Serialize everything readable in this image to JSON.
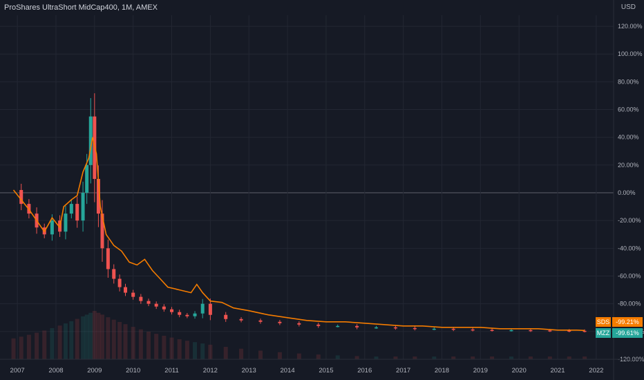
{
  "header": {
    "title": "ProShares UltraShort MidCap400, 1M, AMEX",
    "currency": "USD"
  },
  "colors": {
    "background": "#161a25",
    "grid": "#232733",
    "up": "#26a69a",
    "down": "#ef5350",
    "sds_line": "#f57c00",
    "mzz_tag": "#26a69a",
    "sds_tag": "#f57c00"
  },
  "chart_data": {
    "type": "line",
    "title": "ProShares UltraShort MidCap400, 1M, AMEX",
    "x_ticks": [
      "2007",
      "2008",
      "2009",
      "2010",
      "2011",
      "2012",
      "2013",
      "2014",
      "2015",
      "2016",
      "2017",
      "2018",
      "2019",
      "2020",
      "2021",
      "2022"
    ],
    "y_ticks": [
      "120.00%",
      "100.00%",
      "80.00%",
      "60.00%",
      "40.00%",
      "20.00%",
      "0.00%",
      "-20.00%",
      "-40.00%",
      "-60.00%",
      "-80.00%",
      "-100.00%",
      "-120.00%"
    ],
    "ylim": [
      -120,
      128
    ],
    "xlim": [
      2006.55,
      2022.45
    ],
    "grid": true,
    "series": [
      {
        "name": "SDS",
        "style": "line",
        "last_value_label": "-99.21%",
        "x": [
          2006.9,
          2007.1,
          2007.3,
          2007.5,
          2007.7,
          2007.9,
          2008.1,
          2008.2,
          2008.4,
          2008.55,
          2008.7,
          2008.85,
          2008.95,
          2009.05,
          2009.15,
          2009.3,
          2009.5,
          2009.7,
          2009.9,
          2010.1,
          2010.3,
          2010.5,
          2010.7,
          2010.9,
          2011.2,
          2011.5,
          2011.65,
          2011.8,
          2012.0,
          2012.3,
          2012.6,
          2013.0,
          2013.5,
          2014.0,
          2014.5,
          2015.0,
          2015.5,
          2016.0,
          2016.5,
          2017.0,
          2017.5,
          2018.0,
          2018.5,
          2019.0,
          2019.5,
          2020.0,
          2020.5,
          2021.0,
          2021.5,
          2021.7
        ],
        "values": [
          2,
          -5,
          -12,
          -20,
          -28,
          -18,
          -25,
          -10,
          -5,
          -2,
          15,
          25,
          40,
          28,
          -10,
          -30,
          -38,
          -42,
          -50,
          -52,
          -48,
          -56,
          -62,
          -68,
          -70,
          -72,
          -66,
          -72,
          -78,
          -79,
          -83,
          -85,
          -88,
          -90,
          -92,
          -93,
          -93,
          -94,
          -95,
          -96,
          -96,
          -97,
          -97,
          -97,
          -98,
          -98,
          -98,
          -99,
          -99,
          -99.21
        ]
      },
      {
        "name": "MZZ",
        "style": "candles",
        "last_value_label": "-99.61%",
        "x": [
          2006.9,
          2007.1,
          2007.3,
          2007.5,
          2007.7,
          2007.9,
          2008.1,
          2008.25,
          2008.4,
          2008.55,
          2008.7,
          2008.8,
          2008.9,
          2009.0,
          2009.1,
          2009.2,
          2009.35,
          2009.5,
          2009.65,
          2009.8,
          2010.0,
          2010.2,
          2010.4,
          2010.6,
          2010.8,
          2011.0,
          2011.2,
          2011.4,
          2011.6,
          2011.8,
          2012.0,
          2012.4,
          2012.8,
          2013.3,
          2013.8,
          2014.3,
          2014.8,
          2015.3,
          2015.8,
          2016.3,
          2016.8,
          2017.3,
          2017.8,
          2018.3,
          2018.8,
          2019.3,
          2019.8,
          2020.3,
          2020.8,
          2021.3,
          2021.7
        ],
        "values": [
          2,
          -8,
          -15,
          -25,
          -30,
          -20,
          -28,
          -15,
          -8,
          -20,
          0,
          20,
          55,
          10,
          -15,
          -40,
          -55,
          -62,
          -68,
          -72,
          -75,
          -78,
          -80,
          -82,
          -84,
          -86,
          -88,
          -89,
          -87,
          -80,
          -88,
          -91,
          -92,
          -93,
          -94,
          -95,
          -96,
          -96,
          -97,
          -97,
          -97.5,
          -98,
          -98,
          -98.5,
          -98.8,
          -99,
          -99,
          -99.2,
          -99.3,
          -99.5,
          -99.61
        ]
      }
    ]
  }
}
